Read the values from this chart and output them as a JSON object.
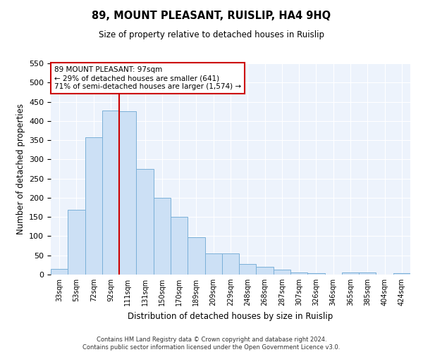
{
  "title": "89, MOUNT PLEASANT, RUISLIP, HA4 9HQ",
  "subtitle": "Size of property relative to detached houses in Ruislip",
  "xlabel": "Distribution of detached houses by size in Ruislip",
  "ylabel": "Number of detached properties",
  "categories": [
    "33sqm",
    "53sqm",
    "72sqm",
    "92sqm",
    "111sqm",
    "131sqm",
    "150sqm",
    "170sqm",
    "189sqm",
    "209sqm",
    "229sqm",
    "248sqm",
    "268sqm",
    "287sqm",
    "307sqm",
    "326sqm",
    "346sqm",
    "365sqm",
    "385sqm",
    "404sqm",
    "424sqm"
  ],
  "values": [
    15,
    168,
    358,
    428,
    425,
    275,
    200,
    150,
    97,
    55,
    55,
    28,
    21,
    13,
    5,
    4,
    0,
    5,
    5,
    0,
    3
  ],
  "bar_color": "#cce0f5",
  "bar_edge_color": "#7ab0d8",
  "vline_index": 3,
  "vline_color": "#cc0000",
  "annotation_line1": "89 MOUNT PLEASANT: 97sqm",
  "annotation_line2": "← 29% of detached houses are smaller (641)",
  "annotation_line3": "71% of semi-detached houses are larger (1,574) →",
  "box_edge_color": "#cc0000",
  "ylim": [
    0,
    550
  ],
  "yticks": [
    0,
    50,
    100,
    150,
    200,
    250,
    300,
    350,
    400,
    450,
    500,
    550
  ],
  "bg_color": "#edf3fc",
  "grid_color": "#ffffff",
  "footer_line1": "Contains HM Land Registry data © Crown copyright and database right 2024.",
  "footer_line2": "Contains public sector information licensed under the Open Government Licence v3.0."
}
